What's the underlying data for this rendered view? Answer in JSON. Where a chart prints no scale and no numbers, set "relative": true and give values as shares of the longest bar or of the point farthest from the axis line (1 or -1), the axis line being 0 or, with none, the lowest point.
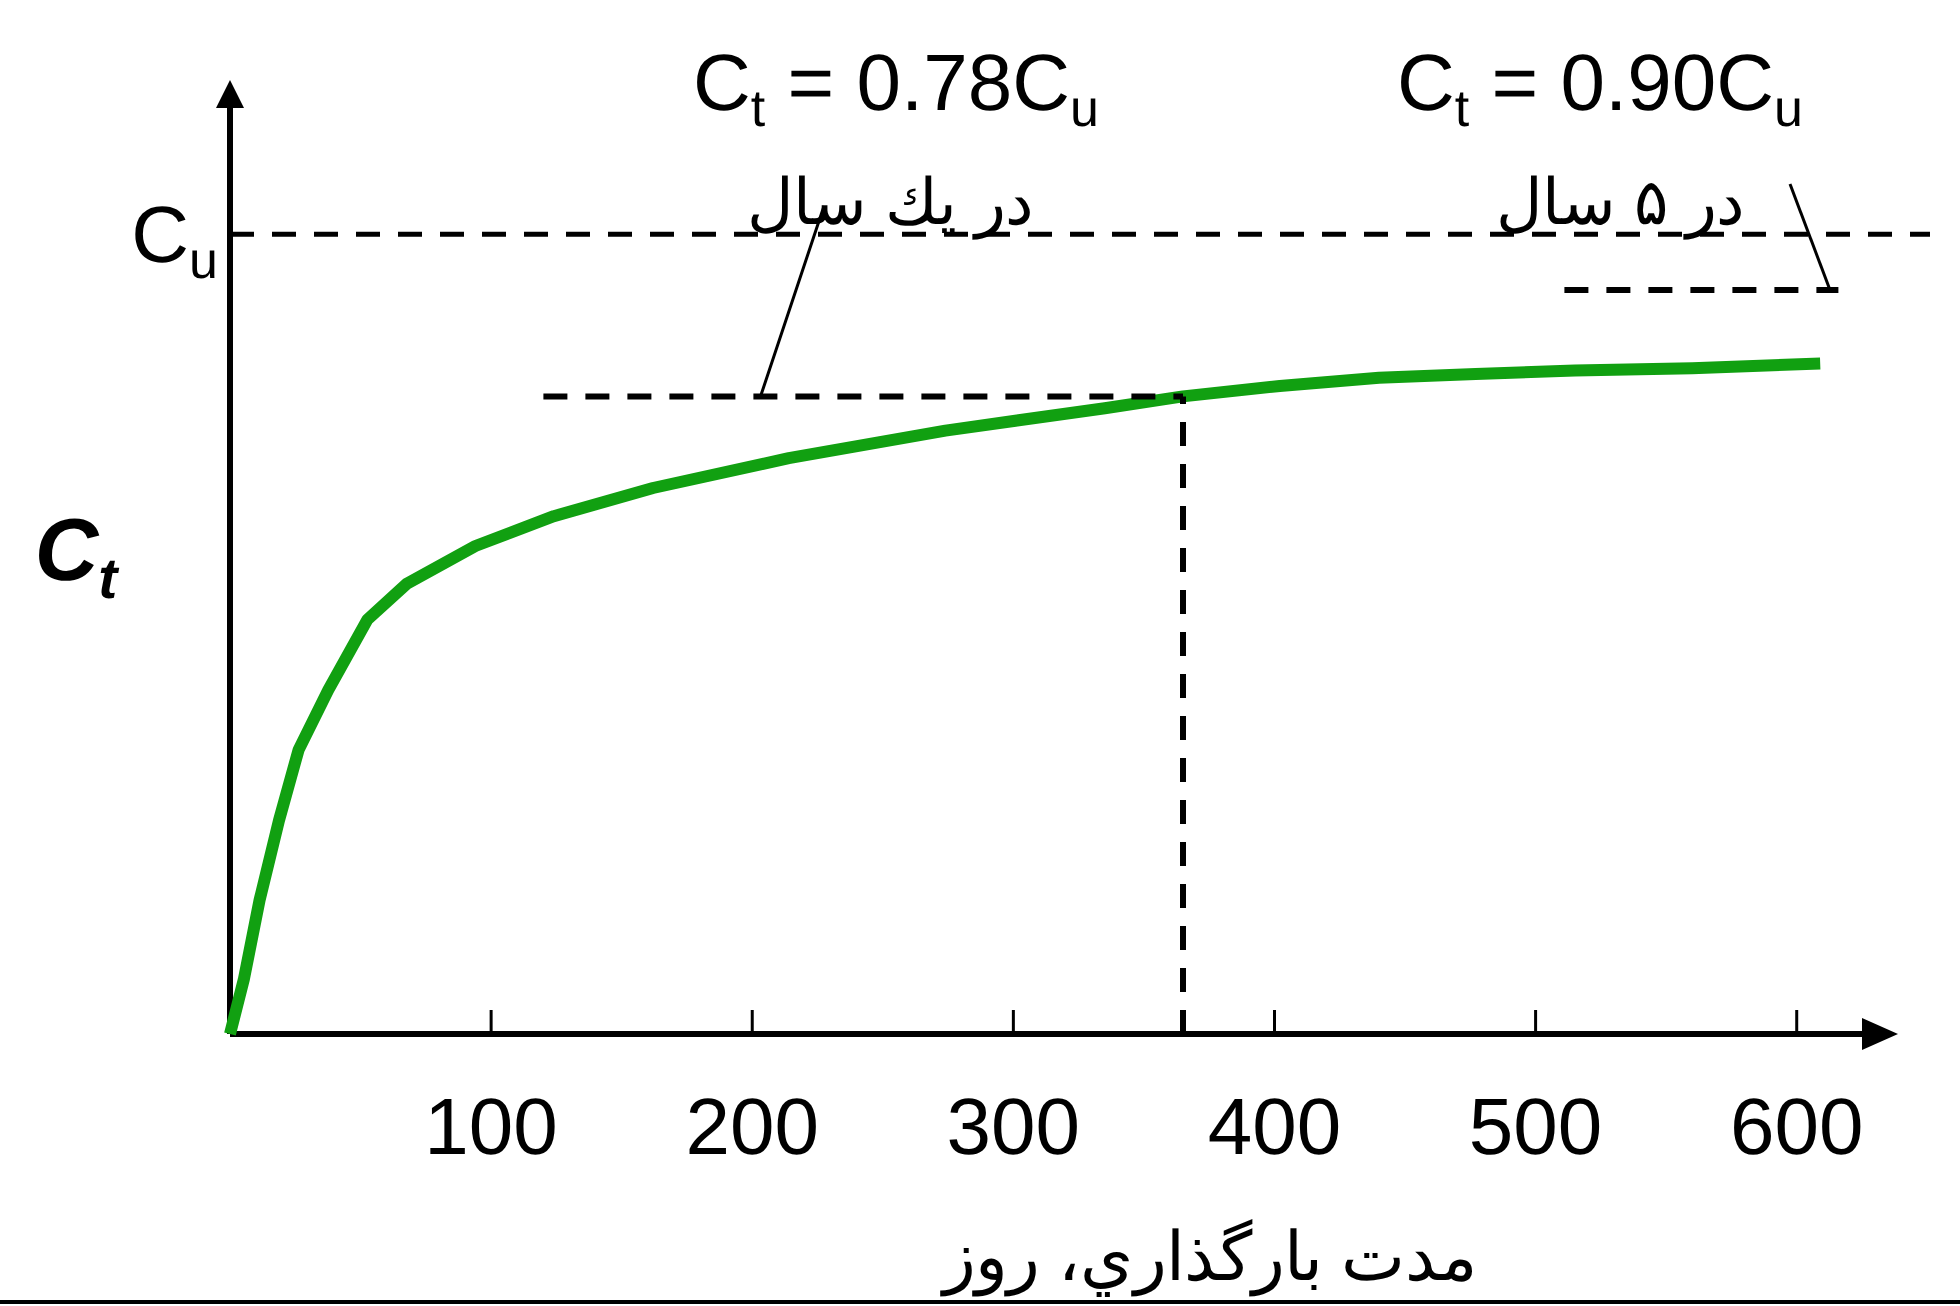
{
  "chart_data": {
    "type": "line",
    "relative": true,
    "ylabel": "C$_{t}$",
    "xlabel": "مدت بارگذاري، روز",
    "xlim": [
      0,
      625
    ],
    "xticks": [
      100,
      200,
      300,
      400,
      500,
      600
    ],
    "grid": false,
    "legend": false,
    "marker": "none",
    "annotations": [
      "C$_{t}$ = 0.78C$_{u}$",
      "C$_{t}$ = 0.90C$_{u}$",
      "در يك سال",
      "در ۵ سال"
    ],
    "ref_lines": [
      {
        "axis": "y",
        "value": 1.075,
        "label": "C$_{u}$",
        "line_style": "dashed",
        "color": "#000000"
      }
    ],
    "series": [
      {
        "color": "#11a011",
        "line_style": "solid",
        "x": [
          0,
          5.3,
          11.3,
          18.8,
          26.3,
          37.6,
          52.6,
          67.7,
          94,
          124,
          162,
          214,
          274,
          335,
          365,
          402,
          440,
          477,
          515,
          560,
          609
        ],
        "values": [
          0,
          0.073,
          0.18,
          0.287,
          0.382,
          0.462,
          0.557,
          0.605,
          0.656,
          0.696,
          0.734,
          0.774,
          0.811,
          0.841,
          0.857,
          0.871,
          0.882,
          0.887,
          0.892,
          0.895,
          0.901
        ]
      },
      {
        "color": "#000000",
        "line_style": "dashed",
        "x": [
          120,
          365
        ],
        "values": [
          0.857,
          0.857
        ]
      },
      {
        "color": "#000000",
        "line_style": "dashed",
        "x": [
          365,
          365
        ],
        "values": [
          0,
          0.857
        ]
      },
      {
        "color": "#000000",
        "line_style": "dashed",
        "x": [
          511,
          616
        ],
        "values": [
          1,
          1
        ]
      }
    ]
  }
}
